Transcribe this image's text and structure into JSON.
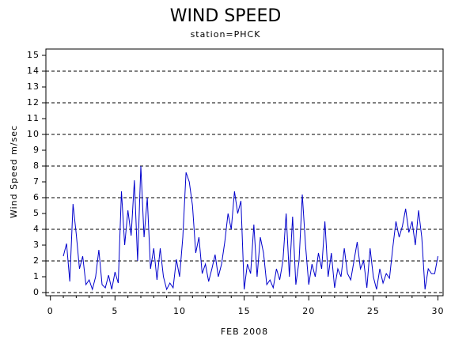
{
  "chart_data": {
    "type": "line",
    "title": "WIND SPEED",
    "subtitle": "station=PHCK",
    "y_label": "Wind Speed m/sec",
    "x_label": "FEB 2008",
    "x": [
      1,
      1.25,
      1.5,
      1.75,
      2,
      2.25,
      2.5,
      2.75,
      3,
      3.25,
      3.5,
      3.75,
      4,
      4.25,
      4.5,
      4.75,
      5,
      5.25,
      5.5,
      5.75,
      6,
      6.25,
      6.5,
      6.75,
      7,
      7.25,
      7.5,
      7.75,
      8,
      8.25,
      8.5,
      8.75,
      9,
      9.25,
      9.5,
      9.75,
      10,
      10.25,
      10.5,
      10.75,
      11,
      11.25,
      11.5,
      11.75,
      12,
      12.25,
      12.5,
      12.75,
      13,
      13.25,
      13.5,
      13.75,
      14,
      14.25,
      14.5,
      14.75,
      15,
      15.25,
      15.5,
      15.75,
      16,
      16.25,
      16.5,
      16.75,
      17,
      17.25,
      17.5,
      17.75,
      18,
      18.25,
      18.5,
      18.75,
      19,
      19.25,
      19.5,
      19.75,
      20,
      20.25,
      20.5,
      20.75,
      21,
      21.25,
      21.5,
      21.75,
      22,
      22.25,
      22.5,
      22.75,
      23,
      23.25,
      23.5,
      23.75,
      24,
      24.25,
      24.5,
      24.75,
      25,
      25.25,
      25.5,
      25.75,
      26,
      26.25,
      26.5,
      26.75,
      27,
      27.25,
      27.5,
      27.75,
      28,
      28.25,
      28.5,
      28.75,
      29,
      29.25,
      29.5,
      29.75,
      30
    ],
    "series": [
      {
        "color": "#0000cc",
        "values": [
          2.3,
          3.1,
          0.7,
          5.6,
          3.7,
          1.5,
          2.3,
          0.5,
          0.8,
          0.2,
          1.0,
          2.7,
          0.5,
          0.3,
          1.1,
          0.2,
          1.3,
          0.6,
          6.4,
          3.0,
          5.2,
          3.6,
          7.1,
          2.0,
          8.0,
          3.5,
          6.0,
          1.5,
          2.8,
          0.8,
          2.8,
          1.0,
          0.2,
          0.6,
          0.3,
          2.1,
          1.0,
          3.5,
          7.6,
          7.0,
          5.5,
          2.5,
          3.5,
          1.2,
          1.8,
          0.7,
          1.5,
          2.4,
          1.0,
          1.8,
          3.2,
          5.0,
          4.0,
          6.4,
          5.0,
          5.8,
          0.2,
          1.8,
          1.2,
          4.3,
          1.0,
          3.5,
          2.5,
          0.5,
          0.8,
          0.3,
          1.5,
          0.8,
          2.0,
          5.0,
          1.0,
          4.8,
          0.5,
          2.0,
          6.2,
          3.0,
          0.5,
          1.8,
          1.0,
          2.5,
          1.5,
          4.5,
          1.0,
          2.5,
          0.3,
          1.5,
          1.0,
          2.8,
          1.2,
          0.8,
          2.0,
          3.2,
          1.5,
          2.0,
          0.3,
          2.8,
          1.0,
          0.2,
          1.5,
          0.6,
          1.2,
          0.9,
          2.8,
          4.5,
          3.5,
          4.2,
          5.3,
          3.8,
          4.5,
          3.0,
          5.2,
          3.5,
          0.2,
          1.5,
          1.2,
          1.2,
          2.3
        ]
      }
    ],
    "xlim": [
      -0.35,
      30.4
    ],
    "ylim": [
      -0.2,
      15.4
    ],
    "xticks": [
      0,
      5,
      10,
      15,
      20,
      25,
      30
    ],
    "xminorticks": [
      1,
      2,
      3,
      4,
      6,
      7,
      8,
      9,
      11,
      12,
      13,
      14,
      16,
      17,
      18,
      19,
      21,
      22,
      23,
      24,
      26,
      27,
      28,
      29
    ],
    "yticks": [
      0,
      1,
      2,
      3,
      4,
      5,
      6,
      7,
      8,
      9,
      10,
      11,
      12,
      13,
      14,
      15
    ],
    "gridlines": [
      0,
      2,
      4,
      6,
      8,
      10,
      12,
      14
    ]
  }
}
